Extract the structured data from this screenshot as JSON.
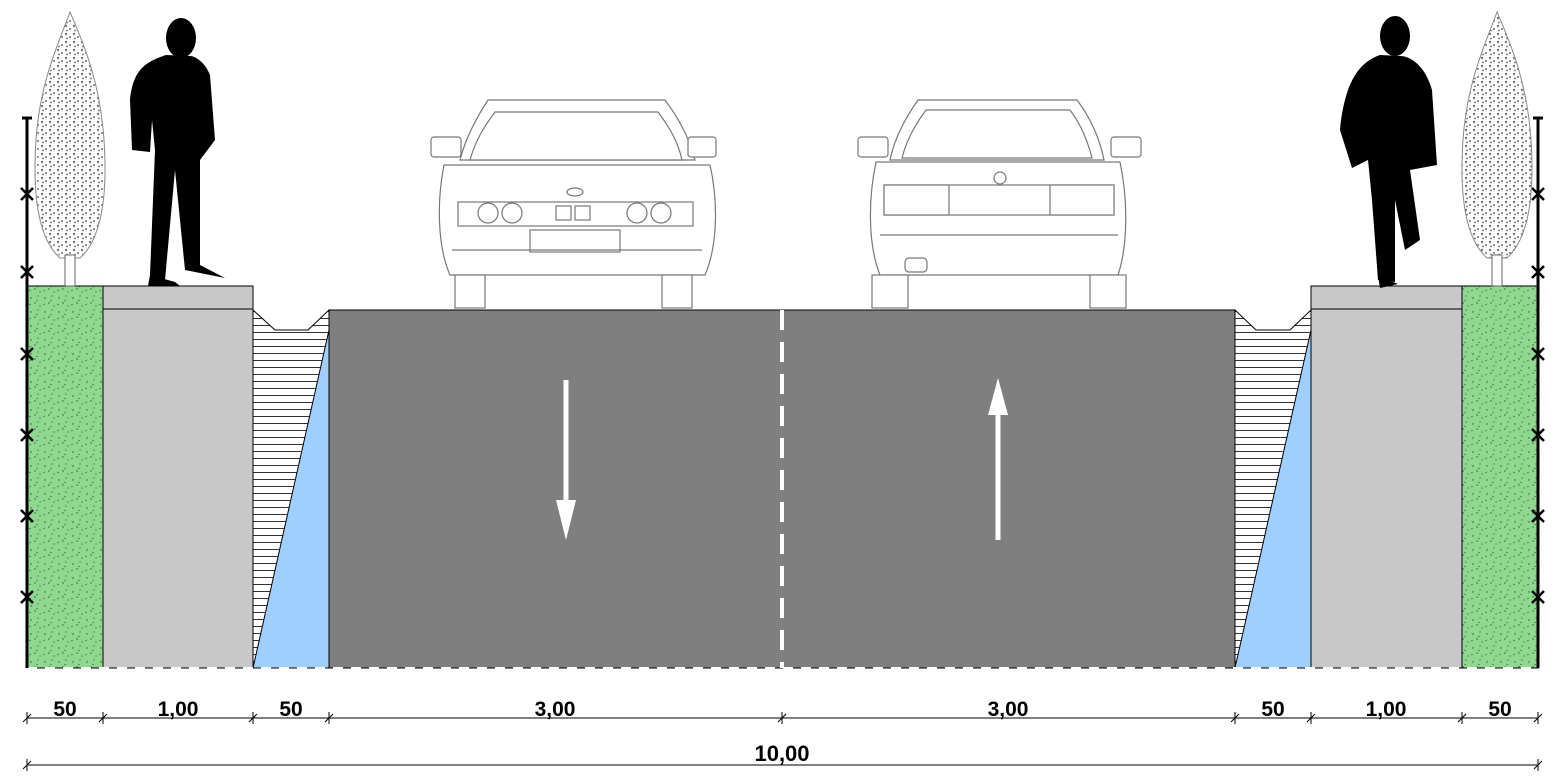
{
  "diagram": {
    "type": "road-cross-section",
    "colors": {
      "carriageway": "#7f7f7f",
      "sidewalk": "#c8c8c8",
      "green_strip": "#8fd88f",
      "drainage": "#9fcfff",
      "lane_marking": "#ffffff",
      "silhouette": "#000000"
    },
    "icons": [
      "tree-icon",
      "pedestrian-icon",
      "car-front-icon",
      "car-rear-icon",
      "arrow-down-icon",
      "arrow-up-icon"
    ],
    "segments": [
      {
        "id": "green-left",
        "label": "50"
      },
      {
        "id": "sidewalk-left",
        "label": "1,00"
      },
      {
        "id": "drain-left",
        "label": "50"
      },
      {
        "id": "lane-left",
        "label": "3,00"
      },
      {
        "id": "lane-right",
        "label": "3,00"
      },
      {
        "id": "drain-right",
        "label": "50"
      },
      {
        "id": "sidewalk-right",
        "label": "1,00"
      },
      {
        "id": "green-right",
        "label": "50"
      }
    ],
    "total_width": {
      "label": "10,00"
    }
  }
}
